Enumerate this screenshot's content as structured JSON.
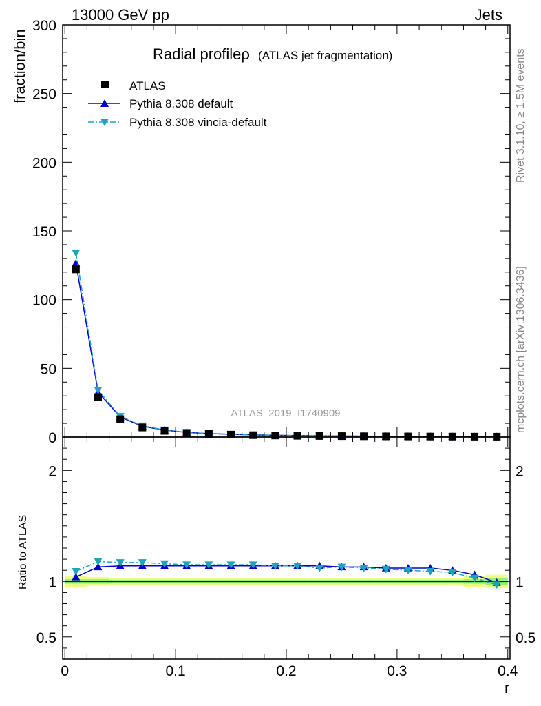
{
  "header": {
    "left": "13000 GeV pp",
    "right": "Jets"
  },
  "side_labels": {
    "rivet": "Rivet 3.1.10, ≥ 1.5M events",
    "mcplots": "mcplots.cern.ch [arXiv:1306.3436]"
  },
  "watermark": "ATLAS_2019_I1740909",
  "chart_data": {
    "type": "scatter",
    "title": "Radial profileρ",
    "subtitle": "(ATLAS jet fragmentation)",
    "xlabel": "r",
    "ylabel": "fraction/bin",
    "ratio_ylabel": "Ratio to ATLAS",
    "xlim": [
      -0.002,
      0.402
    ],
    "ylim": [
      0,
      300
    ],
    "ratio_ylim": [
      0.3,
      2.3
    ],
    "x_ticks": [
      "0",
      "0.1",
      "0.2",
      "0.3",
      "0.4"
    ],
    "y_ticks": [
      "0",
      "50",
      "100",
      "150",
      "200",
      "250",
      "300"
    ],
    "ratio_ticks": [
      "0.5",
      "1",
      "2"
    ],
    "legend_position": "top-left",
    "colors": {
      "data": "#000000",
      "default": "#0000cc",
      "vincia": "#1ba3c0",
      "band_outer": "#eeff88",
      "band_inner": "#99ee77",
      "ref_line": "#00aa00"
    },
    "x": [
      0.01,
      0.03,
      0.05,
      0.07,
      0.09,
      0.11,
      0.13,
      0.15,
      0.17,
      0.19,
      0.21,
      0.23,
      0.25,
      0.27,
      0.29,
      0.31,
      0.33,
      0.35,
      0.37,
      0.39
    ],
    "series": [
      {
        "name": "ATLAS",
        "style": "data",
        "values": [
          122.0,
          29.0,
          13.0,
          7.0,
          4.5,
          3.0,
          2.3,
          1.8,
          1.4,
          1.15,
          0.95,
          0.8,
          0.7,
          0.6,
          0.52,
          0.46,
          0.4,
          0.36,
          0.32,
          0.3
        ],
        "ratio": [
          1,
          1,
          1,
          1,
          1,
          1,
          1,
          1,
          1,
          1,
          1,
          1,
          1,
          1,
          1,
          1,
          1,
          1,
          1,
          1
        ]
      },
      {
        "name": "Pythia 8.308 default",
        "style": "solid",
        "values": [
          126.5,
          32.7,
          14.6,
          7.9,
          5.1,
          3.4,
          2.6,
          2.0,
          1.6,
          1.3,
          1.1,
          0.9,
          0.8,
          0.7,
          0.59,
          0.52,
          0.45,
          0.4,
          0.35,
          0.3
        ],
        "ratio": [
          1.04,
          1.13,
          1.14,
          1.14,
          1.14,
          1.14,
          1.14,
          1.14,
          1.14,
          1.14,
          1.14,
          1.14,
          1.13,
          1.13,
          1.12,
          1.12,
          1.12,
          1.1,
          1.06,
          0.99
        ]
      },
      {
        "name": "Pythia 8.308 vincia-default",
        "style": "dashdot",
        "values": [
          134.0,
          34.2,
          15.1,
          8.2,
          5.2,
          3.4,
          2.6,
          2.1,
          1.6,
          1.3,
          1.1,
          0.9,
          0.8,
          0.7,
          0.58,
          0.51,
          0.44,
          0.39,
          0.33,
          0.29
        ],
        "ratio": [
          1.09,
          1.18,
          1.17,
          1.17,
          1.16,
          1.15,
          1.15,
          1.15,
          1.15,
          1.14,
          1.14,
          1.12,
          1.13,
          1.12,
          1.11,
          1.1,
          1.09,
          1.08,
          1.03,
          0.97
        ]
      }
    ],
    "band": {
      "outer": [
        0.05,
        0.04,
        0.03,
        0.03,
        0.03,
        0.03,
        0.03,
        0.03,
        0.03,
        0.03,
        0.03,
        0.03,
        0.03,
        0.03,
        0.03,
        0.03,
        0.03,
        0.03,
        0.05,
        0.06
      ],
      "inner": [
        0.02,
        0.02,
        0.015,
        0.015,
        0.015,
        0.015,
        0.015,
        0.015,
        0.015,
        0.015,
        0.015,
        0.015,
        0.015,
        0.015,
        0.015,
        0.015,
        0.015,
        0.015,
        0.02,
        0.03
      ]
    }
  }
}
